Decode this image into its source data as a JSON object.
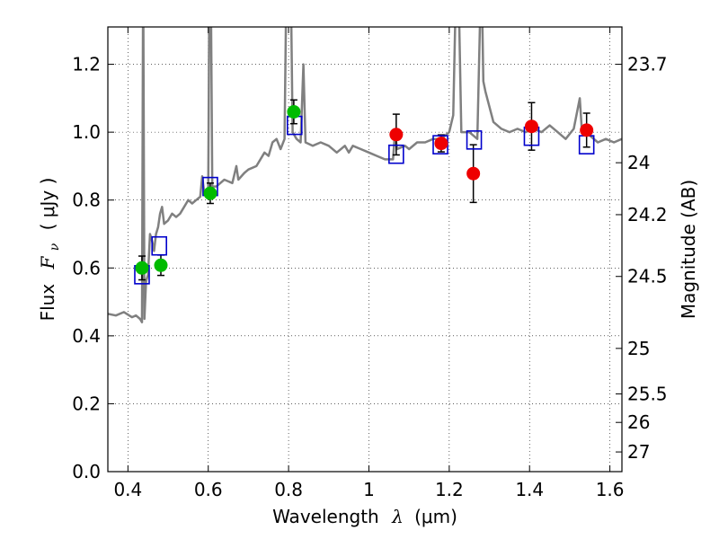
{
  "chart_data": {
    "type": "scatter",
    "xlabel_prefix": "Wavelength",
    "xlabel_symbol": "λ",
    "xlabel_unit": "(μm)",
    "ylabel_prefix": "Flux",
    "ylabel_symbol": "F",
    "ylabel_subscript": "ν",
    "ylabel_unit": "( μJy )",
    "y2label": "Magnitude (AB)",
    "xlim": [
      0.35,
      1.63
    ],
    "ylim": [
      0.0,
      1.31
    ],
    "x_ticks": [
      0.4,
      0.6,
      0.8,
      1.0,
      1.2,
      1.4,
      1.6
    ],
    "x_tick_labels": [
      "0.4",
      "0.6",
      "0.8",
      "1",
      "1.2",
      "1.4",
      "1.6"
    ],
    "y_ticks": [
      0.0,
      0.2,
      0.4,
      0.6,
      0.8,
      1.0,
      1.2
    ],
    "y_tick_labels": [
      "0.0",
      "0.2",
      "0.4",
      "0.6",
      "0.8",
      "1.0",
      "1.2"
    ],
    "y2_ticks": [
      {
        "label": "23.7",
        "flux": 1.2
      },
      {
        "label": "24",
        "flux": 0.91
      },
      {
        "label": "24.2",
        "flux": 0.757
      },
      {
        "label": "24.5",
        "flux": 0.575
      },
      {
        "label": "25",
        "flux": 0.363
      },
      {
        "label": "25.5",
        "flux": 0.229
      },
      {
        "label": "26",
        "flux": 0.145
      },
      {
        "label": "27",
        "flux": 0.058
      }
    ],
    "grid": true,
    "colors": {
      "spectrum": "#808080",
      "green_points": "#00bb00",
      "red_points": "#ee0000",
      "model_boxes": "#0000cc",
      "errorbar": "#000000"
    },
    "series": [
      {
        "kind": "spectrum-line",
        "points": [
          [
            0.35,
            0.465
          ],
          [
            0.37,
            0.46
          ],
          [
            0.39,
            0.47
          ],
          [
            0.41,
            0.455
          ],
          [
            0.42,
            0.46
          ],
          [
            0.43,
            0.45
          ],
          [
            0.435,
            0.44
          ],
          [
            0.438,
            1.5
          ],
          [
            0.441,
            0.45
          ],
          [
            0.445,
            0.56
          ],
          [
            0.45,
            0.58
          ],
          [
            0.455,
            0.7
          ],
          [
            0.46,
            0.68
          ],
          [
            0.465,
            0.65
          ],
          [
            0.47,
            0.7
          ],
          [
            0.475,
            0.72
          ],
          [
            0.48,
            0.76
          ],
          [
            0.485,
            0.78
          ],
          [
            0.49,
            0.73
          ],
          [
            0.5,
            0.74
          ],
          [
            0.51,
            0.76
          ],
          [
            0.52,
            0.75
          ],
          [
            0.53,
            0.76
          ],
          [
            0.54,
            0.78
          ],
          [
            0.55,
            0.8
          ],
          [
            0.56,
            0.79
          ],
          [
            0.57,
            0.8
          ],
          [
            0.58,
            0.81
          ],
          [
            0.585,
            0.87
          ],
          [
            0.59,
            0.82
          ],
          [
            0.6,
            0.83
          ],
          [
            0.603,
            1.5
          ],
          [
            0.606,
            1.5
          ],
          [
            0.61,
            0.84
          ],
          [
            0.62,
            0.84
          ],
          [
            0.64,
            0.86
          ],
          [
            0.66,
            0.85
          ],
          [
            0.67,
            0.9
          ],
          [
            0.675,
            0.86
          ],
          [
            0.69,
            0.88
          ],
          [
            0.7,
            0.89
          ],
          [
            0.72,
            0.9
          ],
          [
            0.74,
            0.94
          ],
          [
            0.75,
            0.93
          ],
          [
            0.76,
            0.97
          ],
          [
            0.77,
            0.98
          ],
          [
            0.78,
            0.95
          ],
          [
            0.79,
            0.98
          ],
          [
            0.795,
            1.5
          ],
          [
            0.805,
            1.5
          ],
          [
            0.81,
            1.0
          ],
          [
            0.82,
            0.98
          ],
          [
            0.83,
            0.97
          ],
          [
            0.837,
            1.2
          ],
          [
            0.842,
            0.97
          ],
          [
            0.86,
            0.96
          ],
          [
            0.88,
            0.97
          ],
          [
            0.9,
            0.96
          ],
          [
            0.92,
            0.94
          ],
          [
            0.94,
            0.96
          ],
          [
            0.95,
            0.94
          ],
          [
            0.96,
            0.96
          ],
          [
            0.98,
            0.95
          ],
          [
            1.0,
            0.94
          ],
          [
            1.02,
            0.93
          ],
          [
            1.04,
            0.92
          ],
          [
            1.06,
            0.92
          ],
          [
            1.065,
            1.0
          ],
          [
            1.07,
            0.95
          ],
          [
            1.09,
            0.96
          ],
          [
            1.1,
            0.95
          ],
          [
            1.12,
            0.97
          ],
          [
            1.14,
            0.97
          ],
          [
            1.16,
            0.98
          ],
          [
            1.18,
            0.98
          ],
          [
            1.2,
            1.0
          ],
          [
            1.21,
            1.05
          ],
          [
            1.218,
            1.5
          ],
          [
            1.222,
            1.5
          ],
          [
            1.23,
            1.0
          ],
          [
            1.25,
            1.0
          ],
          [
            1.27,
            0.98
          ],
          [
            1.28,
            1.5
          ],
          [
            1.285,
            1.15
          ],
          [
            1.29,
            1.12
          ],
          [
            1.31,
            1.03
          ],
          [
            1.33,
            1.01
          ],
          [
            1.35,
            1.0
          ],
          [
            1.37,
            1.01
          ],
          [
            1.39,
            1.0
          ],
          [
            1.41,
            1.01
          ],
          [
            1.43,
            1.0
          ],
          [
            1.45,
            1.02
          ],
          [
            1.47,
            1.0
          ],
          [
            1.49,
            0.98
          ],
          [
            1.51,
            1.01
          ],
          [
            1.525,
            1.1
          ],
          [
            1.53,
            1.01
          ],
          [
            1.55,
            0.99
          ],
          [
            1.57,
            0.97
          ],
          [
            1.59,
            0.98
          ],
          [
            1.61,
            0.97
          ],
          [
            1.63,
            0.98
          ]
        ]
      },
      {
        "kind": "green-points",
        "points": [
          {
            "x": 0.435,
            "y": 0.6,
            "err": 0.035
          },
          {
            "x": 0.482,
            "y": 0.608,
            "err": 0.03
          },
          {
            "x": 0.605,
            "y": 0.82,
            "err": 0.03
          },
          {
            "x": 0.813,
            "y": 1.06,
            "err": 0.035
          }
        ]
      },
      {
        "kind": "red-points",
        "points": [
          {
            "x": 1.068,
            "y": 0.993,
            "err": 0.06
          },
          {
            "x": 1.18,
            "y": 0.967,
            "err": 0.025
          },
          {
            "x": 1.26,
            "y": 0.878,
            "err": 0.085
          },
          {
            "x": 1.405,
            "y": 1.017,
            "err": 0.07
          },
          {
            "x": 1.542,
            "y": 1.006,
            "err": 0.05
          }
        ]
      },
      {
        "kind": "model-boxes",
        "points": [
          {
            "x": 0.435,
            "y": 0.58
          },
          {
            "x": 0.478,
            "y": 0.665
          },
          {
            "x": 0.605,
            "y": 0.84
          },
          {
            "x": 0.815,
            "y": 1.02
          },
          {
            "x": 1.068,
            "y": 0.935
          },
          {
            "x": 1.178,
            "y": 0.963
          },
          {
            "x": 1.262,
            "y": 0.977
          },
          {
            "x": 1.405,
            "y": 0.988
          },
          {
            "x": 1.542,
            "y": 0.963
          }
        ]
      }
    ]
  }
}
